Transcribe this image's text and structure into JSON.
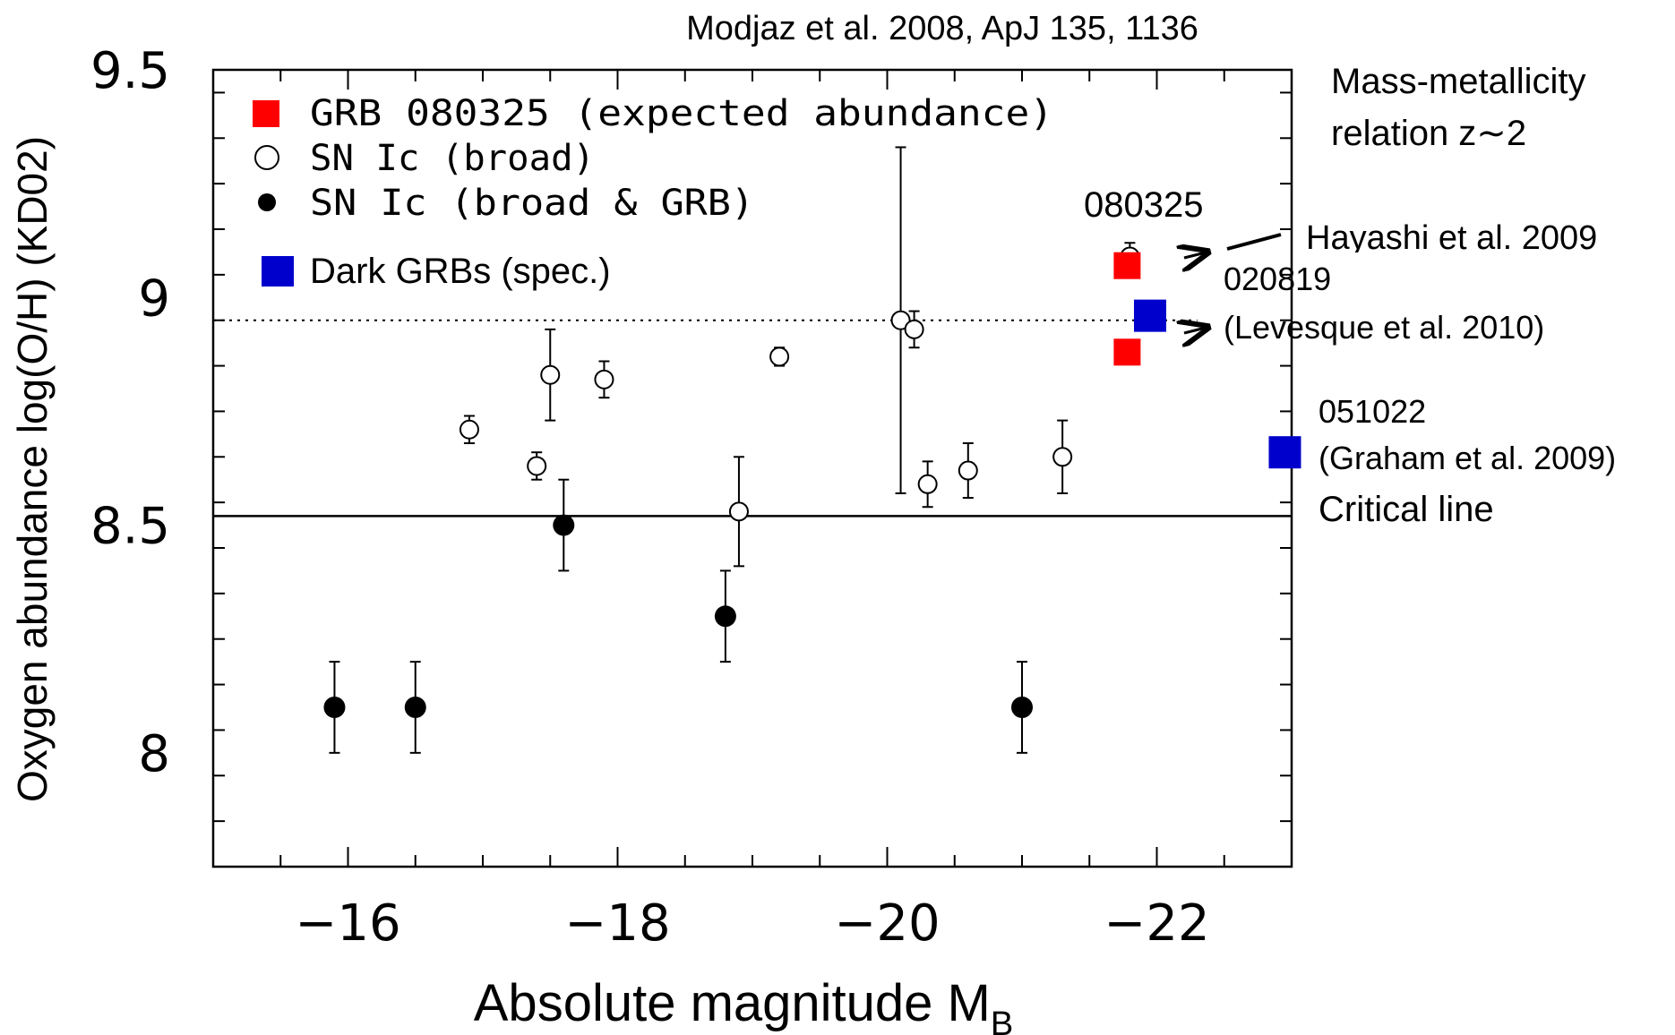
{
  "chart_data": {
    "type": "scatter",
    "title": "Modjaz et al. 2008, ApJ 135, 1136",
    "xlabel": "Absolute magnitude M",
    "xlabel_sub": "B",
    "ylabel": "Oxygen abundance log(O/H) (KD02)",
    "xlim": [
      -15,
      -23
    ],
    "ylim": [
      7.75,
      9.5
    ],
    "x_ticks": [
      -16,
      -18,
      -20,
      -22
    ],
    "x_tick_labels": [
      "−16",
      "−18",
      "−20",
      "−22"
    ],
    "y_ticks": [
      8,
      8.5,
      9,
      9.5
    ],
    "y_tick_labels": [
      "8",
      "8.5",
      "9",
      "9.5"
    ],
    "grid": false,
    "legend_position": "top-left",
    "legend": [
      {
        "label": "GRB 080325 (expected abundance)",
        "marker": "square",
        "color": "#ff0000"
      },
      {
        "label": "SN Ic (broad)",
        "marker": "open-circle",
        "color": "#000000"
      },
      {
        "label": "SN Ic (broad & GRB)",
        "marker": "filled-circle",
        "color": "#000000"
      },
      {
        "label": "Dark GRBs (spec.)",
        "marker": "square",
        "color": "#0000cc"
      }
    ],
    "series": [
      {
        "name": "SN Ic (broad)",
        "marker": "open-circle",
        "points": [
          {
            "x": -16.9,
            "y": 8.71,
            "err": 0.03
          },
          {
            "x": -17.4,
            "y": 8.63,
            "err": 0.03
          },
          {
            "x": -17.5,
            "y": 8.83,
            "err": 0.1
          },
          {
            "x": -17.9,
            "y": 8.82,
            "err": 0.04
          },
          {
            "x": -18.9,
            "y": 8.53,
            "err": 0.12
          },
          {
            "x": -19.2,
            "y": 8.87,
            "err": 0.02
          },
          {
            "x": -20.1,
            "y": 8.95,
            "err": 0.38
          },
          {
            "x": -20.2,
            "y": 8.93,
            "err": 0.04
          },
          {
            "x": -20.3,
            "y": 8.59,
            "err": 0.05
          },
          {
            "x": -20.6,
            "y": 8.62,
            "err": 0.06
          },
          {
            "x": -21.3,
            "y": 8.65,
            "err": 0.08
          },
          {
            "x": -21.8,
            "y": 9.09,
            "err": 0.03
          }
        ]
      },
      {
        "name": "SN Ic (broad & GRB)",
        "marker": "filled-circle",
        "points": [
          {
            "x": -15.9,
            "y": 8.1,
            "err": 0.1
          },
          {
            "x": -16.5,
            "y": 8.1,
            "err": 0.1
          },
          {
            "x": -17.6,
            "y": 8.5,
            "err": 0.1
          },
          {
            "x": -18.8,
            "y": 8.3,
            "err": 0.1
          },
          {
            "x": -21.0,
            "y": 8.1,
            "err": 0.1
          }
        ]
      },
      {
        "name": "GRB 080325 (expected abundance)",
        "marker": "square",
        "color": "#ff0000",
        "points": [
          {
            "x": -21.78,
            "y": 9.07
          },
          {
            "x": -21.78,
            "y": 8.88
          }
        ]
      },
      {
        "name": "Dark GRBs (spec.)",
        "marker": "square",
        "color": "#0000cc",
        "points": [
          {
            "x": -21.95,
            "y": 8.96
          },
          {
            "x": -22.95,
            "y": 8.66
          }
        ]
      }
    ],
    "reference_lines": [
      {
        "y": 8.52,
        "style": "solid",
        "label": "Critical line"
      },
      {
        "y": 8.95,
        "style": "dotted",
        "label": "Mass-metallicity relation z∼2"
      }
    ],
    "annotations": {
      "mass_metallicity_line1": "Mass-metallicity",
      "mass_metallicity_line2": "relation z∼2",
      "grb080325_label": "080325",
      "hayashi_label": "Hayashi et al. 2009",
      "grb020819_name": "020819",
      "grb020819_ref": "(Levesque et al. 2010)",
      "grb051022_name": "051022",
      "grb051022_ref": "(Graham et al. 2009)",
      "critical_line_label": "Critical line"
    }
  }
}
